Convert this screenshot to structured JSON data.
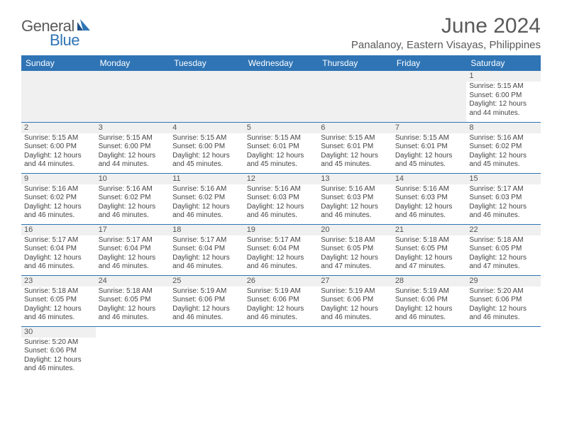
{
  "brand": {
    "general": "General",
    "blue": "Blue"
  },
  "title": "June 2024",
  "location": "Panalanoy, Eastern Visayas, Philippines",
  "header_color": "#2f74b5",
  "day_headers": [
    "Sunday",
    "Monday",
    "Tuesday",
    "Wednesday",
    "Thursday",
    "Friday",
    "Saturday"
  ],
  "weeks": [
    [
      null,
      null,
      null,
      null,
      null,
      null,
      {
        "n": "1",
        "sunrise": "5:15 AM",
        "sunset": "6:00 PM",
        "daylight": "12 hours and 44 minutes."
      }
    ],
    [
      {
        "n": "2",
        "sunrise": "5:15 AM",
        "sunset": "6:00 PM",
        "daylight": "12 hours and 44 minutes."
      },
      {
        "n": "3",
        "sunrise": "5:15 AM",
        "sunset": "6:00 PM",
        "daylight": "12 hours and 44 minutes."
      },
      {
        "n": "4",
        "sunrise": "5:15 AM",
        "sunset": "6:00 PM",
        "daylight": "12 hours and 45 minutes."
      },
      {
        "n": "5",
        "sunrise": "5:15 AM",
        "sunset": "6:01 PM",
        "daylight": "12 hours and 45 minutes."
      },
      {
        "n": "6",
        "sunrise": "5:15 AM",
        "sunset": "6:01 PM",
        "daylight": "12 hours and 45 minutes."
      },
      {
        "n": "7",
        "sunrise": "5:15 AM",
        "sunset": "6:01 PM",
        "daylight": "12 hours and 45 minutes."
      },
      {
        "n": "8",
        "sunrise": "5:16 AM",
        "sunset": "6:02 PM",
        "daylight": "12 hours and 45 minutes."
      }
    ],
    [
      {
        "n": "9",
        "sunrise": "5:16 AM",
        "sunset": "6:02 PM",
        "daylight": "12 hours and 46 minutes."
      },
      {
        "n": "10",
        "sunrise": "5:16 AM",
        "sunset": "6:02 PM",
        "daylight": "12 hours and 46 minutes."
      },
      {
        "n": "11",
        "sunrise": "5:16 AM",
        "sunset": "6:02 PM",
        "daylight": "12 hours and 46 minutes."
      },
      {
        "n": "12",
        "sunrise": "5:16 AM",
        "sunset": "6:03 PM",
        "daylight": "12 hours and 46 minutes."
      },
      {
        "n": "13",
        "sunrise": "5:16 AM",
        "sunset": "6:03 PM",
        "daylight": "12 hours and 46 minutes."
      },
      {
        "n": "14",
        "sunrise": "5:16 AM",
        "sunset": "6:03 PM",
        "daylight": "12 hours and 46 minutes."
      },
      {
        "n": "15",
        "sunrise": "5:17 AM",
        "sunset": "6:03 PM",
        "daylight": "12 hours and 46 minutes."
      }
    ],
    [
      {
        "n": "16",
        "sunrise": "5:17 AM",
        "sunset": "6:04 PM",
        "daylight": "12 hours and 46 minutes."
      },
      {
        "n": "17",
        "sunrise": "5:17 AM",
        "sunset": "6:04 PM",
        "daylight": "12 hours and 46 minutes."
      },
      {
        "n": "18",
        "sunrise": "5:17 AM",
        "sunset": "6:04 PM",
        "daylight": "12 hours and 46 minutes."
      },
      {
        "n": "19",
        "sunrise": "5:17 AM",
        "sunset": "6:04 PM",
        "daylight": "12 hours and 46 minutes."
      },
      {
        "n": "20",
        "sunrise": "5:18 AM",
        "sunset": "6:05 PM",
        "daylight": "12 hours and 47 minutes."
      },
      {
        "n": "21",
        "sunrise": "5:18 AM",
        "sunset": "6:05 PM",
        "daylight": "12 hours and 47 minutes."
      },
      {
        "n": "22",
        "sunrise": "5:18 AM",
        "sunset": "6:05 PM",
        "daylight": "12 hours and 47 minutes."
      }
    ],
    [
      {
        "n": "23",
        "sunrise": "5:18 AM",
        "sunset": "6:05 PM",
        "daylight": "12 hours and 46 minutes."
      },
      {
        "n": "24",
        "sunrise": "5:18 AM",
        "sunset": "6:05 PM",
        "daylight": "12 hours and 46 minutes."
      },
      {
        "n": "25",
        "sunrise": "5:19 AM",
        "sunset": "6:06 PM",
        "daylight": "12 hours and 46 minutes."
      },
      {
        "n": "26",
        "sunrise": "5:19 AM",
        "sunset": "6:06 PM",
        "daylight": "12 hours and 46 minutes."
      },
      {
        "n": "27",
        "sunrise": "5:19 AM",
        "sunset": "6:06 PM",
        "daylight": "12 hours and 46 minutes."
      },
      {
        "n": "28",
        "sunrise": "5:19 AM",
        "sunset": "6:06 PM",
        "daylight": "12 hours and 46 minutes."
      },
      {
        "n": "29",
        "sunrise": "5:20 AM",
        "sunset": "6:06 PM",
        "daylight": "12 hours and 46 minutes."
      }
    ],
    [
      {
        "n": "30",
        "sunrise": "5:20 AM",
        "sunset": "6:06 PM",
        "daylight": "12 hours and 46 minutes."
      },
      null,
      null,
      null,
      null,
      null,
      null
    ]
  ],
  "labels": {
    "sunrise": "Sunrise: ",
    "sunset": "Sunset: ",
    "daylight": "Daylight: "
  }
}
